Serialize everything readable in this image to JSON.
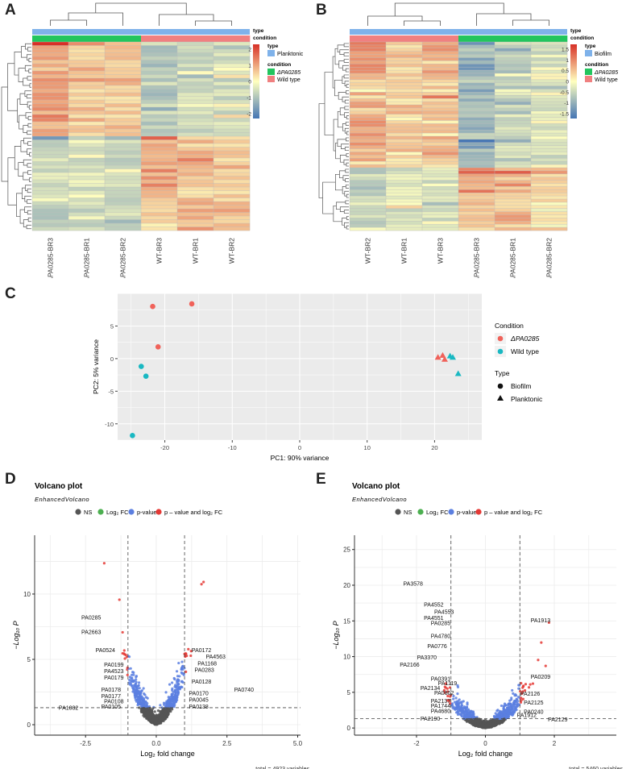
{
  "panels": {
    "A": {
      "label": "A",
      "columns": [
        "ΔPA0285-BR3",
        "ΔPA0285-BR1",
        "ΔPA0285-BR2",
        "WT-BR3",
        "WT-BR1",
        "WT-BR2"
      ],
      "legend": {
        "annotation_title": "type",
        "type_title": "type",
        "type_value": "Planktonic",
        "condition_title": "condition",
        "condition_values": [
          "ΔPA0285",
          "Wild type"
        ],
        "scale_ticks": [
          "2",
          "1",
          "0",
          "-1",
          "-2"
        ]
      }
    },
    "B": {
      "label": "B",
      "columns": [
        "WT-BR2",
        "WT-BR1",
        "WT-BR3",
        "ΔPA0285-BR3",
        "ΔPA0285-BR1",
        "ΔPA0285-BR2"
      ],
      "legend": {
        "annotation_title": "type",
        "type_title": "type",
        "type_value": "Biofilm",
        "condition_title": "condition",
        "condition_values": [
          "ΔPA0285",
          "Wild type"
        ],
        "scale_ticks": [
          "1.5",
          "1",
          "0.5",
          "0",
          "-0.5",
          "-1",
          "-1.5"
        ]
      }
    },
    "C": {
      "label": "C"
    },
    "D": {
      "label": "D"
    },
    "E": {
      "label": "E"
    }
  },
  "colors": {
    "mutant": "#22c55e",
    "wildtype": "#f08080",
    "type_bar": "#7fb2ea",
    "heat_high": "#d73027",
    "heat_mid": "#ffffbf",
    "heat_low": "#4575b4",
    "pca_mutant": "#f0625a",
    "pca_wt": "#19b8c2",
    "ns": "#555555",
    "fc": "#4caf50",
    "pv": "#5b7fe0",
    "both": "#e53935"
  },
  "chart_data": [
    {
      "type": "scatter",
      "id": "pca",
      "xlabel": "PC1: 90% variance",
      "ylabel": "PC2: 5% variance",
      "xlim": [
        -27,
        27
      ],
      "ylim": [
        -12.5,
        10
      ],
      "xticks": [
        -20,
        -10,
        0,
        10,
        20
      ],
      "yticks": [
        5,
        0,
        -5,
        -10
      ],
      "grid": true,
      "legend": {
        "condition_title": "Condition",
        "condition_entries": [
          "ΔPA0285",
          "Wild type"
        ],
        "type_title": "Type",
        "type_entries": [
          "Biofilm",
          "Planktonic"
        ]
      },
      "points": [
        {
          "x": -21.8,
          "y": 8.0,
          "condition": "ΔPA0285",
          "type": "Biofilm"
        },
        {
          "x": -16.0,
          "y": 8.4,
          "condition": "ΔPA0285",
          "type": "Biofilm"
        },
        {
          "x": -21.0,
          "y": 1.8,
          "condition": "ΔPA0285",
          "type": "Biofilm"
        },
        {
          "x": -23.5,
          "y": -1.2,
          "condition": "Wild type",
          "type": "Biofilm"
        },
        {
          "x": -22.8,
          "y": -2.7,
          "condition": "Wild type",
          "type": "Biofilm"
        },
        {
          "x": -24.8,
          "y": -11.8,
          "condition": "Wild type",
          "type": "Biofilm"
        },
        {
          "x": 20.5,
          "y": 0.2,
          "condition": "ΔPA0285",
          "type": "Planktonic"
        },
        {
          "x": 21.2,
          "y": 0.5,
          "condition": "ΔPA0285",
          "type": "Planktonic"
        },
        {
          "x": 21.5,
          "y": -0.1,
          "condition": "ΔPA0285",
          "type": "Planktonic"
        },
        {
          "x": 22.3,
          "y": 0.4,
          "condition": "Wild type",
          "type": "Planktonic"
        },
        {
          "x": 22.7,
          "y": 0.2,
          "condition": "Wild type",
          "type": "Planktonic"
        },
        {
          "x": 23.5,
          "y": -2.3,
          "condition": "Wild type",
          "type": "Planktonic"
        }
      ]
    },
    {
      "type": "scatter",
      "id": "volcanoD",
      "title": "Volcano plot",
      "subtitle": "EnhancedVolcano",
      "legend_entries": [
        "NS",
        "Log₂ FC",
        "p-value",
        "p – value and log₂ FC"
      ],
      "xlabel": "Log₂ fold change",
      "ylabel": "−Log₁₀ P",
      "xlim": [
        -4.3,
        5.1
      ],
      "ylim": [
        -0.8,
        14.5
      ],
      "xticks": [
        -2.5,
        0.0,
        2.5,
        5.0
      ],
      "xtick_labels": [
        "-2.5",
        "0.0",
        "2.5",
        "5.0"
      ],
      "yticks": [
        0,
        5,
        10
      ],
      "vlines": [
        -1,
        1
      ],
      "hline": 1.3,
      "caption": "total = 4923 variables",
      "labels": [
        {
          "text": "PA0285",
          "x": -2.3,
          "y": 8.2
        },
        {
          "text": "PA2663",
          "x": -2.3,
          "y": 7.1
        },
        {
          "text": "PA0524",
          "x": -1.8,
          "y": 5.7
        },
        {
          "text": "PA0199",
          "x": -1.5,
          "y": 4.6
        },
        {
          "text": "PA4523",
          "x": -1.5,
          "y": 4.1
        },
        {
          "text": "PA0179",
          "x": -1.5,
          "y": 3.6
        },
        {
          "text": "PA0178",
          "x": -1.6,
          "y": 2.7
        },
        {
          "text": "PA0177",
          "x": -1.6,
          "y": 2.2
        },
        {
          "text": "PA0108",
          "x": -1.5,
          "y": 1.8
        },
        {
          "text": "PA0105",
          "x": -1.6,
          "y": 1.4
        },
        {
          "text": "PA1082",
          "x": -3.1,
          "y": 1.3
        },
        {
          "text": "PA0172",
          "x": 1.6,
          "y": 5.7
        },
        {
          "text": "PA4563",
          "x": 2.1,
          "y": 5.2
        },
        {
          "text": "PA1168",
          "x": 1.8,
          "y": 4.7
        },
        {
          "text": "PA0283",
          "x": 1.7,
          "y": 4.2
        },
        {
          "text": "PA0128",
          "x": 1.6,
          "y": 3.3
        },
        {
          "text": "PA0170",
          "x": 1.5,
          "y": 2.4
        },
        {
          "text": "PA0045",
          "x": 1.5,
          "y": 1.9
        },
        {
          "text": "PA0138",
          "x": 1.5,
          "y": 1.4
        },
        {
          "text": "PA0740",
          "x": 3.1,
          "y": 2.7
        }
      ]
    },
    {
      "type": "scatter",
      "id": "volcanoE",
      "title": "Volcano plot",
      "subtitle": "EnhancedVolcano",
      "legend_entries": [
        "NS",
        "Log₂ FC",
        "p-value",
        "p – value and log₂ FC"
      ],
      "xlabel": "Log₂ fold change",
      "ylabel": "−Log₁₀ P",
      "xlim": [
        -3.8,
        3.8
      ],
      "ylim": [
        -1,
        27
      ],
      "xticks": [
        -2,
        0,
        2
      ],
      "xtick_labels": [
        "-2",
        "0",
        "2"
      ],
      "yticks": [
        0,
        5,
        10,
        15,
        20,
        25
      ],
      "vlines": [
        -1,
        1
      ],
      "hline": 1.3,
      "caption": "total = 5460 variables",
      "labels": [
        {
          "text": "PA3578",
          "x": -2.1,
          "y": 20.2
        },
        {
          "text": "PA4552",
          "x": -1.5,
          "y": 17.3
        },
        {
          "text": "PA4553",
          "x": -1.2,
          "y": 16.3
        },
        {
          "text": "PA4551",
          "x": -1.5,
          "y": 15.4
        },
        {
          "text": "PA0285",
          "x": -1.3,
          "y": 14.7
        },
        {
          "text": "PA4780",
          "x": -1.3,
          "y": 12.9
        },
        {
          "text": "PA0776",
          "x": -1.4,
          "y": 11.5
        },
        {
          "text": "PA3370",
          "x": -1.7,
          "y": 9.9
        },
        {
          "text": "PA2166",
          "x": -2.2,
          "y": 8.9
        },
        {
          "text": "PA0391",
          "x": -1.3,
          "y": 6.9
        },
        {
          "text": "PA1119",
          "x": -1.1,
          "y": 6.3
        },
        {
          "text": "PA2134",
          "x": -1.6,
          "y": 5.6
        },
        {
          "text": "PA0802",
          "x": -1.2,
          "y": 4.9
        },
        {
          "text": "PA2137",
          "x": -1.3,
          "y": 3.8
        },
        {
          "text": "PA1744",
          "x": -1.3,
          "y": 3.1
        },
        {
          "text": "PA4680",
          "x": -1.3,
          "y": 2.4
        },
        {
          "text": "PA2190",
          "x": -1.6,
          "y": 1.3
        },
        {
          "text": "PA1913",
          "x": 1.6,
          "y": 15.1
        },
        {
          "text": "PA0209",
          "x": 1.6,
          "y": 7.2
        },
        {
          "text": "PA2126",
          "x": 1.3,
          "y": 4.8
        },
        {
          "text": "PA2125",
          "x": 1.4,
          "y": 3.6
        },
        {
          "text": "PA0240",
          "x": 1.4,
          "y": 2.3
        },
        {
          "text": "PA1912",
          "x": 1.2,
          "y": 1.8
        },
        {
          "text": "PA2129",
          "x": 2.1,
          "y": 1.2
        }
      ]
    }
  ]
}
